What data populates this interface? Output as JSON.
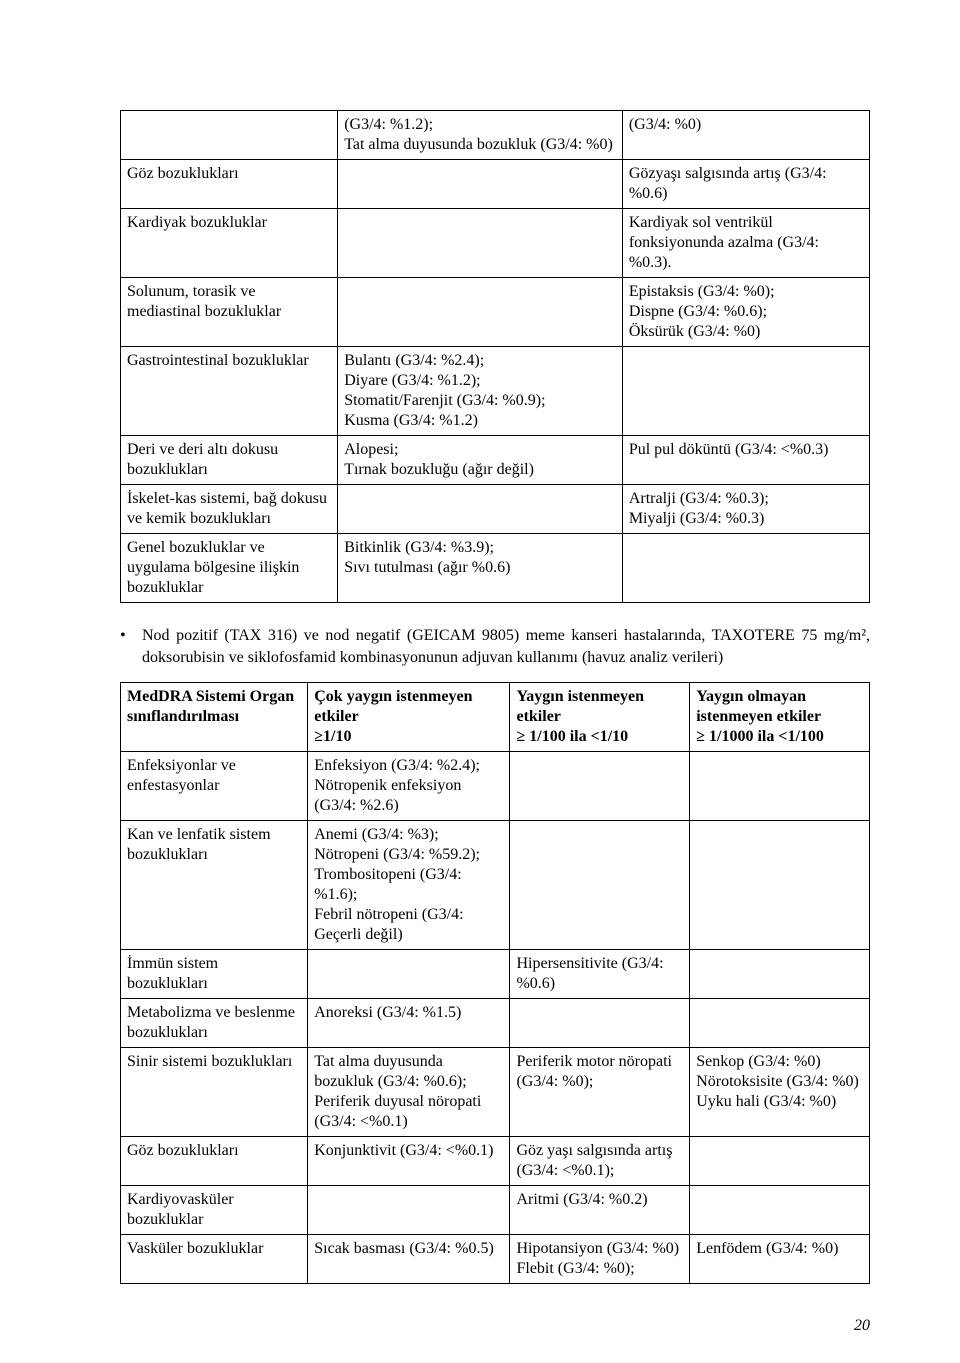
{
  "table1": {
    "rows": [
      {
        "c1": "",
        "c2": "(G3/4: %1.2);\nTat alma duyusunda bozukluk (G3/4: %0)",
        "c3": "(G3/4: %0)"
      },
      {
        "c1": "Göz bozuklukları",
        "c2": "",
        "c3": "Gözyaşı salgısında artış (G3/4: %0.6)"
      },
      {
        "c1": "Kardiyak bozukluklar",
        "c2": "",
        "c3": "Kardiyak sol ventrikül fonksiyonunda azalma (G3/4: %0.3)."
      },
      {
        "c1": "Solunum, torasik ve mediastinal bozukluklar",
        "c2": "",
        "c3": "Epistaksis (G3/4: %0);\nDispne (G3/4: %0.6);\nÖksürük (G3/4: %0)"
      },
      {
        "c1": "Gastrointestinal bozukluklar",
        "c2": "Bulantı (G3/4: %2.4);\nDiyare (G3/4: %1.2);\nStomatit/Farenjit (G3/4: %0.9);\nKusma (G3/4: %1.2)",
        "c3": ""
      },
      {
        "c1": "Deri ve deri altı dokusu bozuklukları",
        "c2": "Alopesi;\nTırnak bozukluğu (ağır değil)",
        "c3": "Pul pul döküntü (G3/4: <%0.3)"
      },
      {
        "c1": "İskelet-kas sistemi, bağ dokusu ve kemik bozuklukları",
        "c2": "",
        "c3": "Artralji (G3/4: %0.3);\nMiyalji (G3/4: %0.3)"
      },
      {
        "c1": "Genel bozukluklar ve uygulama bölgesine ilişkin bozukluklar",
        "c2": "Bitkinlik (G3/4: %3.9);\nSıvı tutulması (ağır %0.6)",
        "c3": ""
      }
    ]
  },
  "bullet_text": "Nod pozitif (TAX 316) ve nod negatif (GEICAM 9805) meme kanseri hastalarında, TAXOTERE 75 mg/m², doksorubisin ve siklofosfamid kombinasyonunun adjuvan kullanımı (havuz analiz verileri)",
  "table2": {
    "headers": {
      "h1": "MedDRA Sistemi Organ sınıflandırılması",
      "h2": "Çok yaygın istenmeyen etkiler\n≥1/10",
      "h3": "Yaygın istenmeyen etkiler\n≥ 1/100 ila <1/10",
      "h4": "Yaygın olmayan istenmeyen etkiler\n≥ 1/1000 ila <1/100"
    },
    "rows": [
      {
        "c1": "Enfeksiyonlar ve enfestasyonlar",
        "c2": "Enfeksiyon (G3/4: %2.4);\nNötropenik enfeksiyon (G3/4: %2.6)",
        "c3": "",
        "c4": ""
      },
      {
        "c1": "Kan ve lenfatik sistem bozuklukları",
        "c2": "Anemi (G3/4: %3);\nNötropeni (G3/4: %59.2);\nTrombositopeni (G3/4: %1.6);\nFebril nötropeni (G3/4: Geçerli değil)",
        "c3": "",
        "c4": ""
      },
      {
        "c1": "İmmün sistem bozuklukları",
        "c2": "",
        "c3": "Hipersensitivite (G3/4: %0.6)",
        "c4": ""
      },
      {
        "c1": "Metabolizma ve beslenme bozuklukları",
        "c2": "Anoreksi (G3/4: %1.5)",
        "c3": "",
        "c4": ""
      },
      {
        "c1": "Sinir sistemi bozuklukları",
        "c2": "Tat alma duyusunda bozukluk (G3/4: %0.6);\nPeriferik duyusal nöropati (G3/4: <%0.1)",
        "c3": "Periferik motor nöropati (G3/4: %0);",
        "c4": "Senkop (G3/4: %0)\nNörotoksisite (G3/4: %0)\nUyku hali (G3/4: %0)"
      },
      {
        "c1": "Göz bozuklukları",
        "c2": "Konjunktivit (G3/4: <%0.1)",
        "c3": "Göz yaşı salgısında artış (G3/4: <%0.1);",
        "c4": ""
      },
      {
        "c1": "Kardiyovasküler bozukluklar",
        "c2": "",
        "c3": "Aritmi (G3/4: %0.2)",
        "c4": ""
      },
      {
        "c1": "Vasküler bozukluklar",
        "c2": "Sıcak basması (G3/4: %0.5)",
        "c3": "Hipotansiyon (G3/4: %0)\nFlebit (G3/4: %0);",
        "c4": "Lenfödem (G3/4: %0)"
      }
    ]
  },
  "page_number": "20"
}
